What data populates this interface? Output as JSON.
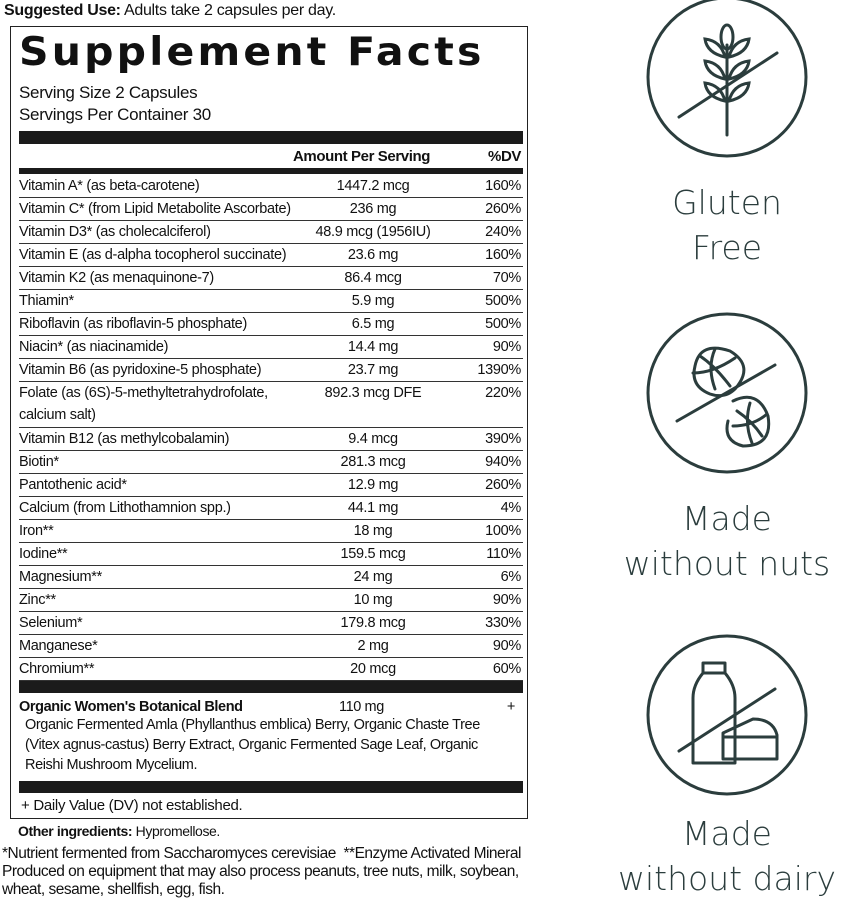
{
  "suggested_use": {
    "label": "Suggested Use:",
    "text": " Adults take 2 capsules per day."
  },
  "panel": {
    "title": "Supplement Facts",
    "serving_size": "Serving Size 2 Capsules",
    "servings_per_container": "Servings Per Container 30",
    "col_amount": "Amount Per Serving",
    "col_dv": "%DV",
    "nutrients": [
      {
        "name": "Vitamin A* (as beta-carotene)",
        "amount": "1447.2 mcg",
        "dv": "160%"
      },
      {
        "name": "Vitamin C* (from Lipid Metabolite Ascorbate)",
        "amount": "236 mg",
        "dv": "260%"
      },
      {
        "name": "Vitamin D3* (as cholecalciferol)",
        "amount": "48.9 mcg (1956IU)",
        "dv": "240%"
      },
      {
        "name": "Vitamin E (as d-alpha tocopherol succinate)",
        "amount": "23.6 mg",
        "dv": "160%"
      },
      {
        "name": "Vitamin K2 (as menaquinone-7)",
        "amount": "86.4 mcg",
        "dv": "70%"
      },
      {
        "name": "Thiamin*",
        "amount": "5.9 mg",
        "dv": "500%"
      },
      {
        "name": "Riboflavin (as riboflavin-5 phosphate)",
        "amount": "6.5 mg",
        "dv": "500%"
      },
      {
        "name": "Niacin* (as niacinamide)",
        "amount": "14.4 mg",
        "dv": "90%"
      },
      {
        "name": "Vitamin B6 (as pyridoxine-5 phosphate)",
        "amount": "23.7 mg",
        "dv": "1390%"
      },
      {
        "name": "Folate (as (6S)-5-methyltetrahydrofolate, calcium salt)",
        "amount": "892.3 mcg DFE",
        "dv": "220%"
      },
      {
        "name": "Vitamin B12 (as methylcobalamin)",
        "amount": "9.4 mcg",
        "dv": "390%"
      },
      {
        "name": "Biotin*",
        "amount": "281.3 mcg",
        "dv": "940%"
      },
      {
        "name": "Pantothenic acid*",
        "amount": "12.9 mg",
        "dv": "260%"
      },
      {
        "name": "Calcium (from Lithothamnion spp.)",
        "amount": "44.1 mg",
        "dv": "4%"
      },
      {
        "name": "Iron**",
        "amount": "18 mg",
        "dv": "100%"
      },
      {
        "name": "Iodine**",
        "amount": "159.5 mcg",
        "dv": "110%"
      },
      {
        "name": "Magnesium**",
        "amount": "24 mg",
        "dv": "6%"
      },
      {
        "name": "Zinc**",
        "amount": "10 mg",
        "dv": "90%"
      },
      {
        "name": "Selenium*",
        "amount": "179.8 mcg",
        "dv": "330%"
      },
      {
        "name": "Manganese*",
        "amount": "2 mg",
        "dv": "90%"
      },
      {
        "name": "Chromium**",
        "amount": "20 mcg",
        "dv": "60%"
      }
    ],
    "blend": {
      "name": "Organic Women's Botanical Blend",
      "amount": "110 mg",
      "dv": "+",
      "description": "Organic Fermented Amla (Phyllanthus emblica) Berry, Organic Chaste Tree (Vitex agnus-castus) Berry Extract, Organic Fermented Sage Leaf, Organic Reishi Mushroom Mycelium."
    },
    "dv_note": "+ Daily Value (DV) not established."
  },
  "other_ingredients": {
    "label": "Other ingredients:",
    "text": " Hypromellose."
  },
  "footnotes": {
    "fermented": "*Nutrient fermented from Saccharomyces cerevisiae",
    "enzyme": "**Enzyme Activated Mineral",
    "allergen": "Produced on equipment that may also process peanuts, tree nuts, milk, soybean, wheat, sesame, shellfish, egg, fish."
  },
  "badges": [
    {
      "icon": "no-gluten-wheat-icon",
      "line1": "Gluten",
      "line2": "Free"
    },
    {
      "icon": "no-peanut-icon",
      "line1": "Made",
      "line2": "without nuts"
    },
    {
      "icon": "no-dairy-icon",
      "line1": "Made",
      "line2": "without dairy"
    }
  ],
  "colors": {
    "badge": "#2b3d3d",
    "text": "#111111",
    "bars": "#1b1b1b"
  }
}
